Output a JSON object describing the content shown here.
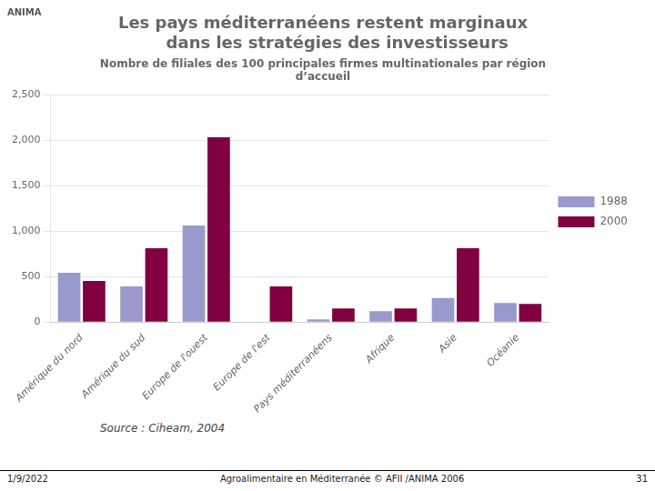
{
  "chart_data": {
    "type": "bar",
    "title": [
      "Les pays méditerranéens restent marginaux",
      "     dans les stratégies des investisseurs"
    ],
    "subtitle": "Nombre de filiales des 100 principales firmes multinationales par région\nd’accueil",
    "categories": [
      "Amérique du nord",
      "Amérique du sud",
      "Europe de l'ouest",
      "Europe de l'est",
      "Pays méditerranéens",
      "Afrique",
      "Asie",
      "Océanie"
    ],
    "series": [
      {
        "name": "1988",
        "color": "#9999CC",
        "values": [
          540,
          390,
          1060,
          0,
          30,
          120,
          265,
          210
        ]
      },
      {
        "name": "2000",
        "color": "#800040",
        "values": [
          450,
          810,
          2030,
          390,
          150,
          150,
          810,
          200
        ]
      }
    ],
    "ylim": [
      0,
      2500
    ],
    "yticks": [
      0,
      500,
      1000,
      1500,
      2000,
      2500
    ],
    "grid": true,
    "legend": "right",
    "annotations": [
      "Source : Ciheam, 2004",
      "1/9/2022",
      "Agroalimentaire en Méditerranée ©  AFII /ANIMA 2006",
      "31",
      "ANIMA"
    ]
  }
}
